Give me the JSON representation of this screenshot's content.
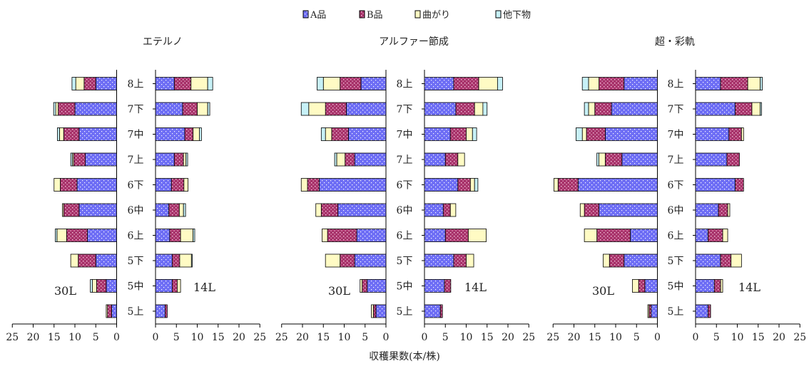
{
  "chart_data": {
    "type": "bar",
    "orientation": "horizontal-stacked-butterfly",
    "xlabel": "収穫果数(本/株)",
    "legend": {
      "placement": "top-center",
      "entries": [
        "A品",
        "B品",
        "曲がり",
        "他下物"
      ]
    },
    "series_colors": {
      "A": "#6e6ef5",
      "B": "#a8326a",
      "C": "#fffbc4",
      "D": "#c7f1f7"
    },
    "categories": [
      "8上",
      "7下",
      "7中",
      "7上",
      "6下",
      "6中",
      "6上",
      "5下",
      "5中",
      "5上"
    ],
    "left_label": "30L",
    "right_label": "14L",
    "axis_ticks": [
      "25",
      "20",
      "15",
      "10",
      "5",
      "0"
    ],
    "axis_ticks_right": [
      "0",
      "5",
      "10",
      "15",
      "20",
      "25"
    ],
    "xlim": [
      0,
      25
    ],
    "panels": [
      {
        "title": "エテルノ",
        "left": [
          {
            "A": 5.0,
            "B": 2.8,
            "C": 2.0,
            "D": 0.9
          },
          {
            "A": 10.0,
            "B": 4.0,
            "C": 0.6,
            "D": 0.5
          },
          {
            "A": 9.0,
            "B": 3.7,
            "C": 1.0,
            "D": 0.5
          },
          {
            "A": 7.5,
            "B": 2.8,
            "C": 0.3,
            "D": 0.4
          },
          {
            "A": 9.5,
            "B": 4.0,
            "C": 1.5,
            "D": 0.0
          },
          {
            "A": 9.0,
            "B": 3.7,
            "C": 0.3,
            "D": 0.0
          },
          {
            "A": 7.0,
            "B": 5.0,
            "C": 2.3,
            "D": 0.4
          },
          {
            "A": 5.0,
            "B": 4.2,
            "C": 1.8,
            "D": 0.0
          },
          {
            "A": 2.5,
            "B": 2.3,
            "C": 1.0,
            "D": 0.5
          },
          {
            "A": 1.2,
            "B": 1.0,
            "C": 0.3,
            "D": 0.0
          }
        ],
        "right": [
          {
            "A": 4.5,
            "B": 4.0,
            "C": 4.0,
            "D": 1.2
          },
          {
            "A": 6.5,
            "B": 3.5,
            "C": 2.5,
            "D": 0.5
          },
          {
            "A": 7.0,
            "B": 2.0,
            "C": 1.5,
            "D": 0.5
          },
          {
            "A": 4.5,
            "B": 2.2,
            "C": 0.6,
            "D": 0.4
          },
          {
            "A": 3.8,
            "B": 3.0,
            "C": 1.0,
            "D": 0.0
          },
          {
            "A": 3.2,
            "B": 2.5,
            "C": 1.0,
            "D": 0.5
          },
          {
            "A": 3.4,
            "B": 2.6,
            "C": 3.0,
            "D": 0.4
          },
          {
            "A": 4.0,
            "B": 1.8,
            "C": 2.8,
            "D": 0.2
          },
          {
            "A": 4.0,
            "B": 1.2,
            "C": 0.8,
            "D": 0.0
          },
          {
            "A": 2.3,
            "B": 0.5,
            "C": 0.0,
            "D": 0.0
          }
        ]
      },
      {
        "title": "アルファー節成",
        "left": [
          {
            "A": 6.0,
            "B": 5.0,
            "C": 4.0,
            "D": 1.5
          },
          {
            "A": 9.5,
            "B": 5.0,
            "C": 4.0,
            "D": 1.8
          },
          {
            "A": 9.0,
            "B": 4.0,
            "C": 1.5,
            "D": 1.0
          },
          {
            "A": 7.5,
            "B": 2.3,
            "C": 2.0,
            "D": 0.5
          },
          {
            "A": 16.0,
            "B": 2.8,
            "C": 1.5,
            "D": 0.0
          },
          {
            "A": 11.5,
            "B": 4.0,
            "C": 1.3,
            "D": 0.0
          },
          {
            "A": 7.0,
            "B": 7.0,
            "C": 1.3,
            "D": 0.0
          },
          {
            "A": 7.5,
            "B": 3.5,
            "C": 3.5,
            "D": 0.0
          },
          {
            "A": 4.5,
            "B": 1.2,
            "C": 0.5,
            "D": 0.0
          },
          {
            "A": 2.4,
            "B": 0.6,
            "C": 0.5,
            "D": 0.0
          }
        ],
        "right": [
          {
            "A": 7.0,
            "B": 6.0,
            "C": 4.5,
            "D": 1.2
          },
          {
            "A": 7.5,
            "B": 4.5,
            "C": 2.0,
            "D": 1.0
          },
          {
            "A": 6.2,
            "B": 3.8,
            "C": 1.5,
            "D": 1.0
          },
          {
            "A": 5.0,
            "B": 3.0,
            "C": 1.6,
            "D": 0.0
          },
          {
            "A": 8.0,
            "B": 3.0,
            "C": 1.0,
            "D": 0.8
          },
          {
            "A": 4.5,
            "B": 1.7,
            "C": 1.3,
            "D": 0.0
          },
          {
            "A": 5.0,
            "B": 5.5,
            "C": 4.3,
            "D": 0.0
          },
          {
            "A": 7.0,
            "B": 3.0,
            "C": 1.8,
            "D": 0.0
          },
          {
            "A": 4.8,
            "B": 1.5,
            "C": 0.0,
            "D": 0.0
          },
          {
            "A": 3.8,
            "B": 0.5,
            "C": 0.0,
            "D": 0.0
          }
        ]
      },
      {
        "title": "超・彩軌",
        "left": [
          {
            "A": 8.0,
            "B": 6.0,
            "C": 2.5,
            "D": 1.5
          },
          {
            "A": 11.0,
            "B": 4.0,
            "C": 1.5,
            "D": 1.0
          },
          {
            "A": 12.5,
            "B": 4.5,
            "C": 1.0,
            "D": 1.5
          },
          {
            "A": 8.5,
            "B": 4.0,
            "C": 1.5,
            "D": 0.5
          },
          {
            "A": 19.0,
            "B": 4.8,
            "C": 1.0,
            "D": 0.0
          },
          {
            "A": 14.0,
            "B": 3.5,
            "C": 1.0,
            "D": 0.0
          },
          {
            "A": 6.5,
            "B": 8.0,
            "C": 3.0,
            "D": 0.0
          },
          {
            "A": 8.0,
            "B": 3.5,
            "C": 1.5,
            "D": 0.0
          },
          {
            "A": 3.0,
            "B": 1.5,
            "C": 1.5,
            "D": 0.0
          },
          {
            "A": 1.5,
            "B": 0.5,
            "C": 0.3,
            "D": 0.0
          }
        ],
        "right": [
          {
            "A": 6.0,
            "B": 6.5,
            "C": 3.0,
            "D": 0.5
          },
          {
            "A": 9.5,
            "B": 4.0,
            "C": 2.0,
            "D": 0.3
          },
          {
            "A": 8.0,
            "B": 3.0,
            "C": 0.5,
            "D": 0.0
          },
          {
            "A": 7.5,
            "B": 3.0,
            "C": 0.0,
            "D": 0.0
          },
          {
            "A": 9.5,
            "B": 2.0,
            "C": 0.0,
            "D": 0.0
          },
          {
            "A": 5.5,
            "B": 2.2,
            "C": 0.5,
            "D": 0.0
          },
          {
            "A": 3.0,
            "B": 3.5,
            "C": 1.2,
            "D": 0.0
          },
          {
            "A": 6.0,
            "B": 2.5,
            "C": 2.5,
            "D": 0.0
          },
          {
            "A": 4.5,
            "B": 1.5,
            "C": 0.5,
            "D": 0.0
          },
          {
            "A": 3.0,
            "B": 0.6,
            "C": 0.0,
            "D": 0.0
          }
        ]
      }
    ]
  }
}
